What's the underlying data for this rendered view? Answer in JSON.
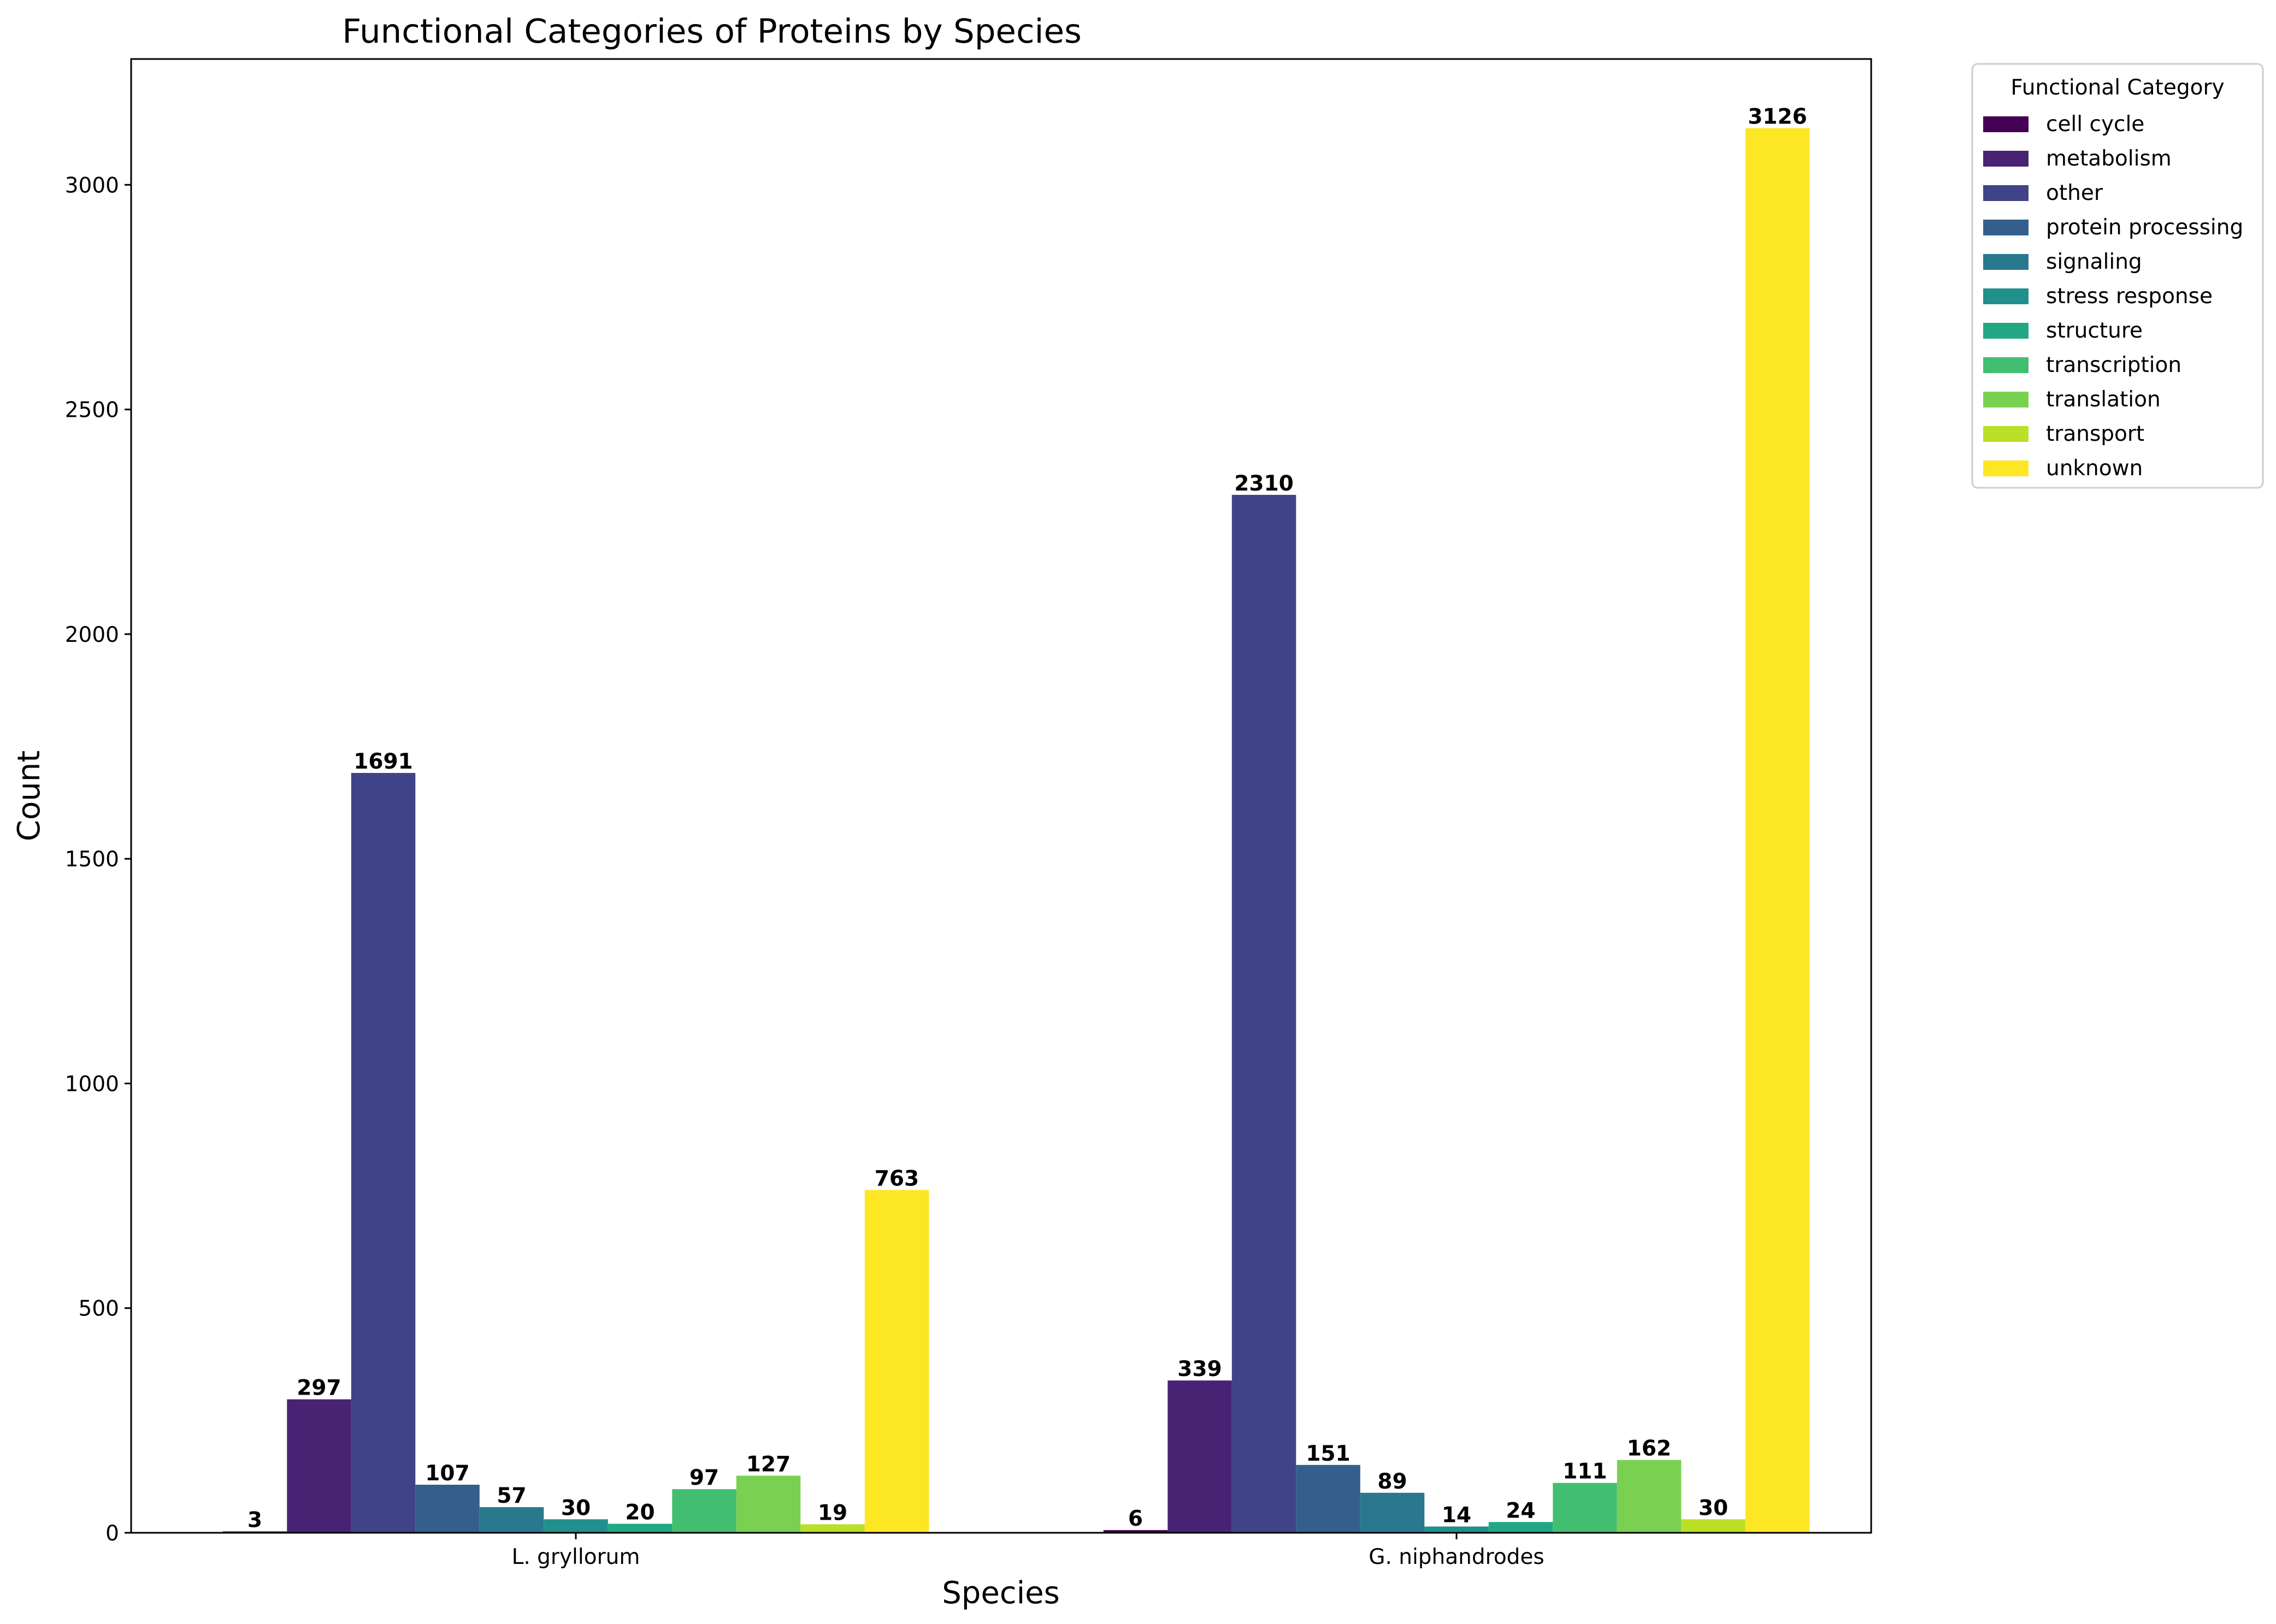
{
  "chart_data": {
    "type": "bar",
    "title": "Functional Categories of Proteins by Species",
    "xlabel": "Species",
    "ylabel": "Count",
    "categories": [
      "L. gryllorum",
      "G. niphandrodes"
    ],
    "ylim": [
      0,
      3280
    ],
    "yticks": [
      0,
      500,
      1000,
      1500,
      2000,
      2500,
      3000
    ],
    "grid": false,
    "legend": {
      "title": "Functional Category",
      "placement": "outside-top-right"
    },
    "series": [
      {
        "name": "cell cycle",
        "color": "#440154",
        "values": [
          3,
          6
        ]
      },
      {
        "name": "metabolism",
        "color": "#482374",
        "values": [
          297,
          339
        ]
      },
      {
        "name": "other",
        "color": "#404387",
        "values": [
          1691,
          2310
        ]
      },
      {
        "name": "protein processing",
        "color": "#345f8d",
        "values": [
          107,
          151
        ]
      },
      {
        "name": "signaling",
        "color": "#29788e",
        "values": [
          57,
          89
        ]
      },
      {
        "name": "stress response",
        "color": "#20908d",
        "values": [
          30,
          14
        ]
      },
      {
        "name": "structure",
        "color": "#22a784",
        "values": [
          20,
          24
        ]
      },
      {
        "name": "transcription",
        "color": "#42be71",
        "values": [
          97,
          111
        ]
      },
      {
        "name": "translation",
        "color": "#7ad151",
        "values": [
          127,
          162
        ]
      },
      {
        "name": "transport",
        "color": "#bcdf27",
        "values": [
          19,
          30
        ]
      },
      {
        "name": "unknown",
        "color": "#fde725",
        "values": [
          763,
          3126
        ]
      }
    ]
  }
}
